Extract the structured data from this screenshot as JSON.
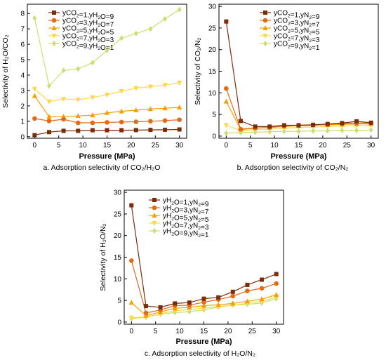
{
  "figure": {
    "colors": [
      "#7b2d08",
      "#e56a16",
      "#f5a000",
      "#ffd84a",
      "#c8e06e"
    ]
  },
  "chart_data": [
    {
      "type": "line",
      "caption": "a. Adsorption selectivity of CO₂/H₂O",
      "xlabel": "Pressure (MPa)",
      "ylabel": "Selectivity of H₂O/CO₂",
      "xlim": [
        -1.5,
        31.5
      ],
      "ylim": [
        -0.1,
        8.6
      ],
      "xticks": [
        0,
        5,
        10,
        15,
        20,
        25,
        30
      ],
      "yticks": [
        0,
        1,
        2,
        3,
        4,
        5,
        6,
        7,
        8
      ],
      "legend_position": "top-left",
      "x": [
        0,
        3,
        6,
        9,
        12,
        15,
        18,
        21,
        24,
        27,
        30
      ],
      "series": [
        {
          "name": "yᴄₒ₂=1,yʜ₂ₒ=9",
          "label_parts": [
            [
              "y",
              ""
            ],
            [
              "CO",
              "2"
            ],
            [
              "=1,y",
              ""
            ],
            [
              "H",
              "2"
            ],
            [
              "O",
              ""
            ],
            [
              "=9",
              ""
            ]
          ],
          "marker": "square",
          "values": [
            0.1,
            0.3,
            0.38,
            0.38,
            0.42,
            0.42,
            0.42,
            0.43,
            0.44,
            0.45,
            0.47
          ]
        },
        {
          "name": "yᴄₒ₂=3,yʜ₂ₒ=7",
          "label_parts": [
            [
              "y",
              ""
            ],
            [
              "CO",
              "2"
            ],
            [
              "=3,y",
              ""
            ],
            [
              "H",
              "2"
            ],
            [
              "O",
              ""
            ],
            [
              "=7",
              ""
            ]
          ],
          "marker": "circle",
          "values": [
            1.18,
            1.02,
            1.13,
            0.9,
            0.9,
            0.93,
            0.95,
            0.97,
            1.0,
            1.05,
            1.1
          ]
        },
        {
          "name": "yᴄₒ₂=5,yʜ₂ₒ=5",
          "label_parts": [
            [
              "y",
              ""
            ],
            [
              "CO",
              "2"
            ],
            [
              "=5,y",
              ""
            ],
            [
              "H",
              "2"
            ],
            [
              "O",
              ""
            ],
            [
              "=5",
              ""
            ]
          ],
          "marker": "triangle-up",
          "values": [
            2.65,
            1.3,
            1.3,
            1.35,
            1.4,
            1.55,
            1.65,
            1.72,
            1.8,
            1.85,
            1.9
          ]
        },
        {
          "name": "yᴄₒ₂=7,yʜ₂ₒ=3",
          "label_parts": [
            [
              "y",
              ""
            ],
            [
              "CO",
              "2"
            ],
            [
              "=7,y",
              ""
            ],
            [
              "H",
              "2"
            ],
            [
              "O",
              ""
            ],
            [
              "=3",
              ""
            ]
          ],
          "marker": "triangle-down",
          "values": [
            3.1,
            2.28,
            2.45,
            2.4,
            2.55,
            2.72,
            2.95,
            3.15,
            3.25,
            3.35,
            3.5
          ]
        },
        {
          "name": "yᴄₒ₂=9,yʜ₂ₒ=1",
          "label_parts": [
            [
              "y",
              ""
            ],
            [
              "CO",
              "2"
            ],
            [
              "=9,y",
              ""
            ],
            [
              "H",
              "2"
            ],
            [
              "O",
              ""
            ],
            [
              "=1",
              ""
            ]
          ],
          "marker": "diamond",
          "values": [
            7.7,
            3.3,
            4.3,
            4.4,
            4.8,
            5.6,
            6.4,
            6.7,
            7.0,
            7.65,
            8.25
          ]
        }
      ]
    },
    {
      "type": "line",
      "caption": "b. Adsorption selectivity of CO₂/N₂",
      "xlabel": "Pressure (MPa)",
      "ylabel": "Selectivity of CO₂/N₂",
      "xlim": [
        -1.5,
        31.5
      ],
      "ylim": [
        -0.5,
        30.5
      ],
      "xticks": [
        0,
        5,
        10,
        15,
        20,
        25,
        30
      ],
      "yticks": [
        0,
        5,
        10,
        15,
        20,
        25,
        30
      ],
      "legend_position": "top-right",
      "x": [
        0,
        3,
        6,
        9,
        12,
        15,
        18,
        21,
        24,
        27,
        30
      ],
      "series": [
        {
          "name": "yᴄₒ₂=1,yɴ₂=9",
          "label_parts": [
            [
              "y",
              ""
            ],
            [
              "CO",
              "2"
            ],
            [
              "=1,y",
              ""
            ],
            [
              "N",
              "2"
            ],
            [
              "=9",
              ""
            ]
          ],
          "marker": "square",
          "values": [
            26.5,
            3.5,
            2.2,
            2.2,
            2.5,
            2.5,
            2.6,
            2.8,
            3.0,
            3.4,
            3.1
          ]
        },
        {
          "name": "yᴄₒ₂=3,yɴ₂=7",
          "label_parts": [
            [
              "y",
              ""
            ],
            [
              "CO",
              "2"
            ],
            [
              "=3,y",
              ""
            ],
            [
              "N",
              "2"
            ],
            [
              "=7",
              ""
            ]
          ],
          "marker": "circle",
          "values": [
            11.0,
            1.6,
            1.9,
            2.0,
            2.4,
            2.5,
            2.6,
            2.7,
            2.9,
            3.0,
            3.0
          ]
        },
        {
          "name": "yᴄₒ₂=5,yɴ₂=5",
          "label_parts": [
            [
              "y",
              ""
            ],
            [
              "CO",
              "2"
            ],
            [
              "=5,y",
              ""
            ],
            [
              "N",
              "2"
            ],
            [
              "=5",
              ""
            ]
          ],
          "marker": "triangle-up",
          "values": [
            8.0,
            1.5,
            1.8,
            2.0,
            2.2,
            2.4,
            2.5,
            2.6,
            2.7,
            2.8,
            2.8
          ]
        },
        {
          "name": "yᴄₒ₂=7,yɴ₂=3",
          "label_parts": [
            [
              "y",
              ""
            ],
            [
              "CO",
              "2"
            ],
            [
              "=7,y",
              ""
            ],
            [
              "N",
              "2"
            ],
            [
              "=3",
              ""
            ]
          ],
          "marker": "triangle-down",
          "values": [
            2.5,
            1.2,
            1.5,
            1.6,
            1.8,
            2.0,
            2.1,
            2.2,
            2.3,
            2.4,
            2.5
          ]
        },
        {
          "name": "yᴄₒ₂=9,yɴ₂=1",
          "label_parts": [
            [
              "y",
              ""
            ],
            [
              "CO",
              "2"
            ],
            [
              "=9,y",
              ""
            ],
            [
              "N",
              "2"
            ],
            [
              "=1",
              ""
            ]
          ],
          "marker": "diamond",
          "values": [
            0.7,
            0.8,
            0.9,
            1.0,
            1.1,
            1.1,
            1.2,
            1.2,
            1.3,
            1.3,
            1.4
          ]
        }
      ]
    },
    {
      "type": "line",
      "caption": "c. Adsorption selectivity of H₂O/N₂",
      "xlabel": "Pressure (MPa)",
      "ylabel": "Selectivity of H₂O/N₂",
      "xlim": [
        -1.5,
        31.5
      ],
      "ylim": [
        -0.5,
        30.5
      ],
      "xticks": [
        0,
        5,
        10,
        15,
        20,
        25,
        30
      ],
      "yticks": [
        0,
        5,
        10,
        15,
        20,
        25,
        30
      ],
      "legend_position": "top-center",
      "x": [
        0,
        3,
        6,
        9,
        12,
        15,
        18,
        21,
        24,
        27,
        30
      ],
      "series": [
        {
          "name": "yʜ₂ₒ=1,yɴ₂=9",
          "label_parts": [
            [
              "y",
              ""
            ],
            [
              "H",
              "2"
            ],
            [
              "O",
              ""
            ],
            [
              "=1,y",
              ""
            ],
            [
              "N",
              "2"
            ],
            [
              "=9",
              ""
            ]
          ],
          "marker": "square",
          "values": [
            27.0,
            3.7,
            3.4,
            4.3,
            4.5,
            5.4,
            5.7,
            7.0,
            8.6,
            9.8,
            11.1
          ]
        },
        {
          "name": "yʜ₂ₒ=3,yɴ₂=7",
          "label_parts": [
            [
              "y",
              ""
            ],
            [
              "H",
              "2"
            ],
            [
              "O",
              ""
            ],
            [
              "=3,y",
              ""
            ],
            [
              "N",
              "2"
            ],
            [
              "=7",
              ""
            ]
          ],
          "marker": "circle",
          "values": [
            14.2,
            2.1,
            2.8,
            3.8,
            3.9,
            4.6,
            5.2,
            6.0,
            7.2,
            7.8,
            8.9
          ]
        },
        {
          "name": "yʜ₂ₒ=5,yɴ₂=5",
          "label_parts": [
            [
              "y",
              ""
            ],
            [
              "H",
              "2"
            ],
            [
              "O",
              ""
            ],
            [
              "=5,y",
              ""
            ],
            [
              "N",
              "2"
            ],
            [
              "=5",
              ""
            ]
          ],
          "marker": "triangle-up",
          "values": [
            4.5,
            1.5,
            2.3,
            3.2,
            3.4,
            3.8,
            4.0,
            4.3,
            4.8,
            5.3,
            6.3
          ]
        },
        {
          "name": "yʜ₂ₒ=7,yɴ₂=3",
          "label_parts": [
            [
              "y",
              ""
            ],
            [
              "H",
              "2"
            ],
            [
              "O",
              ""
            ],
            [
              "=7,y",
              ""
            ],
            [
              "N",
              "2"
            ],
            [
              "=3",
              ""
            ]
          ],
          "marker": "triangle-down",
          "values": [
            1.0,
            1.2,
            1.9,
            2.6,
            2.9,
            3.2,
            3.6,
            3.9,
            4.3,
            4.8,
            5.8
          ]
        },
        {
          "name": "yʜ₂ₒ=9,yɴ₂=1",
          "label_parts": [
            [
              "y",
              ""
            ],
            [
              "H",
              "2"
            ],
            [
              "O",
              ""
            ],
            [
              "=9,y",
              ""
            ],
            [
              "N",
              "2"
            ],
            [
              "=1",
              ""
            ]
          ],
          "marker": "diamond",
          "values": [
            0.8,
            1.1,
            1.8,
            2.2,
            2.4,
            2.8,
            3.5,
            3.9,
            4.1,
            4.4,
            5.4
          ]
        }
      ]
    }
  ]
}
